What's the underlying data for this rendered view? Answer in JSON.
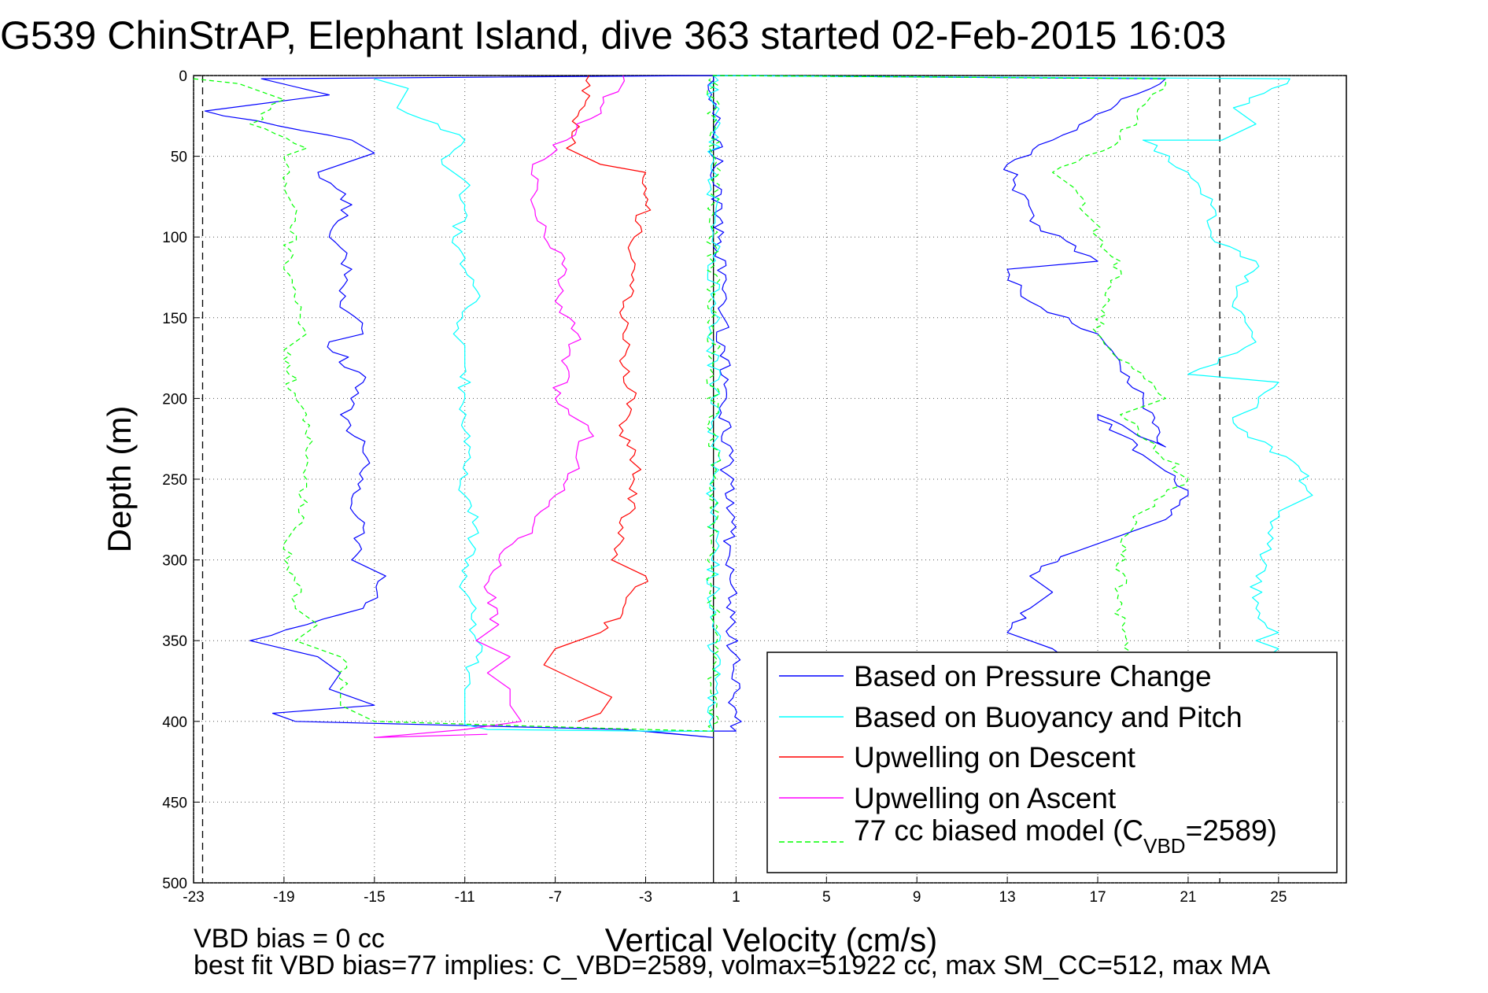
{
  "title": "G539 ChinStrAP, Elephant Island, dive 363 started 02-Feb-2015 16:03",
  "footer": {
    "line1": "VBD bias = 0 cc",
    "line2": "best fit VBD bias=77 implies: C_VBD=2589, volmax=51922 cc, max SM_CC=512, max MA"
  },
  "legend": {
    "model_prefix": "77 cc biased model (C",
    "model_sub": "VBD",
    "model_suffix": "=2589)"
  },
  "colors": {
    "pressure": "#0000ff",
    "buoyancy": "#00ffff",
    "descent": "#ff0000",
    "ascent": "#ff00ff",
    "model": "#00ff00",
    "grid": "#666666",
    "ref_lines": "#000000"
  },
  "chart_data": {
    "type": "line",
    "title": "G539 ChinStrAP, Elephant Island, dive 363 started 02-Feb-2015 16:03",
    "xlabel": "Vertical Velocity (cm/s)",
    "ylabel": "Depth (m)",
    "xlim": [
      -23,
      28
    ],
    "ylim": [
      0,
      500
    ],
    "y_reversed": true,
    "x_ticks": [
      "-23",
      "-19",
      "-15",
      "-11",
      "-7",
      "-3",
      "1",
      "5",
      "9",
      "13",
      "17",
      "21",
      "25"
    ],
    "y_ticks": [
      "0",
      "50",
      "100",
      "150",
      "200",
      "250",
      "300",
      "350",
      "400",
      "450",
      "500"
    ],
    "grid": true,
    "legend_position": "bottom-right",
    "reference_lines": [
      {
        "x": -22.6,
        "style": "dashed"
      },
      {
        "x": 0,
        "style": "solid"
      },
      {
        "x": 22.4,
        "style": "dashed"
      }
    ],
    "series": [
      {
        "name": "Based on Pressure Change",
        "color": "#0000ff",
        "style": "solid",
        "key": "pressure",
        "x": [
          0,
          -20,
          -17,
          -22.5,
          -16,
          -15,
          -17.5,
          -16,
          -17,
          -16,
          -16.5,
          -15.5,
          -17,
          -15.5,
          -16.5,
          -15.5,
          -15.5,
          -16,
          -15.5,
          -16,
          -14.5,
          -15.5,
          -20.5,
          -17.5,
          -16.5,
          -17,
          -15,
          -19.5,
          -18.5,
          -4,
          0,
          0,
          -3,
          0,
          1,
          0,
          20,
          15,
          13,
          14,
          17,
          13,
          14,
          17,
          18,
          19,
          20,
          17,
          19,
          20,
          21,
          20,
          18,
          16,
          14,
          15,
          14,
          13,
          15,
          15.5
        ],
        "y": [
          0,
          2,
          12,
          22,
          40,
          48,
          60,
          80,
          100,
          120,
          140,
          160,
          165,
          190,
          210,
          230,
          250,
          265,
          280,
          300,
          310,
          330,
          350,
          360,
          370,
          380,
          390,
          395,
          400,
          405,
          410,
          410,
          406,
          406,
          406,
          0,
          2,
          40,
          55,
          90,
          115,
          120,
          140,
          160,
          180,
          200,
          230,
          210,
          235,
          245,
          260,
          275,
          285,
          295,
          310,
          320,
          330,
          345,
          355,
          360
        ]
      },
      {
        "name": "Based on Buoyancy and Pitch",
        "color": "#00ffff",
        "style": "solid",
        "key": "buoyancy",
        "x": [
          -15,
          -13.5,
          -14,
          -11,
          -12,
          -11,
          -11,
          -11.5,
          -11,
          -10.5,
          -11.5,
          -11,
          -11,
          -11,
          -11,
          -11,
          -11,
          -10.5,
          -11,
          -11,
          -10.5,
          -10.5,
          -11,
          -11,
          -11,
          -11,
          -10,
          -3,
          0,
          0,
          25.5,
          23,
          24,
          22.5,
          19,
          21,
          22,
          22,
          24,
          23,
          24,
          21,
          25,
          23,
          26,
          26.5,
          25,
          24.5,
          24,
          24,
          25,
          24,
          25,
          24.5
        ],
        "y": [
          2,
          8,
          20,
          40,
          55,
          65,
          80,
          100,
          120,
          140,
          160,
          167,
          180,
          200,
          220,
          240,
          260,
          280,
          300,
          320,
          340,
          360,
          380,
          390,
          400,
          402,
          405,
          406,
          406,
          0,
          2,
          20,
          30,
          40,
          40,
          60,
          80,
          100,
          115,
          140,
          165,
          185,
          190,
          215,
          245,
          260,
          270,
          290,
          310,
          330,
          345,
          350,
          355,
          360
        ]
      },
      {
        "name": "Upwelling on Descent",
        "color": "#ff0000",
        "style": "solid",
        "key": "descent",
        "x": [
          -5.5,
          -6,
          -6.5,
          -5,
          -3,
          -3,
          -3.5,
          -3.5,
          -4,
          -4,
          -4,
          -3.5,
          -4,
          -3.5,
          -3.5,
          -3.5,
          -4,
          -4.5,
          -3,
          -4,
          -5,
          -7,
          -7.5,
          -6,
          -4.5,
          -5,
          -6
        ],
        "y": [
          0,
          25,
          45,
          55,
          60,
          80,
          100,
          120,
          140,
          160,
          180,
          200,
          220,
          235,
          250,
          265,
          280,
          300,
          310,
          330,
          345,
          355,
          365,
          375,
          385,
          395,
          400
        ]
      },
      {
        "name": "Upwelling on Ascent",
        "color": "#ff00ff",
        "style": "solid",
        "key": "ascent",
        "x": [
          -4,
          -5,
          -6.5,
          -8,
          -8,
          -7.5,
          -6.5,
          -7,
          -6,
          -6.5,
          -7,
          -5.5,
          -6,
          -7,
          -8,
          -9.5,
          -10,
          -9.5,
          -10.5,
          -9,
          -10,
          -9,
          -9,
          -8.5,
          -11,
          -15,
          -10
        ],
        "y": [
          0,
          20,
          40,
          55,
          80,
          100,
          120,
          140,
          160,
          180,
          200,
          220,
          240,
          260,
          280,
          300,
          320,
          340,
          350,
          360,
          370,
          380,
          390,
          400,
          405,
          410,
          408
        ]
      },
      {
        "name": "77 cc biased model (C_VBD=2589)",
        "color": "#00ff00",
        "style": "dashed",
        "key": "model",
        "x": [
          -23,
          -21,
          -19,
          -20.5,
          -18,
          -19,
          -19,
          -18.5,
          -19,
          -18.5,
          -18,
          -19,
          -18.5,
          -18,
          -18,
          -18,
          -18.5,
          -19,
          -18.5,
          -18.5,
          -17.5,
          -18.5,
          -16.5,
          -16.5,
          -16.5,
          -15,
          -3,
          0,
          0,
          0,
          20,
          18,
          15,
          16,
          17,
          18,
          17,
          20,
          18,
          21,
          19,
          18,
          18,
          18.5
        ],
        "y": [
          2,
          5,
          15,
          30,
          45,
          50,
          70,
          90,
          120,
          140,
          160,
          170,
          200,
          220,
          250,
          255,
          280,
          290,
          310,
          330,
          340,
          350,
          360,
          380,
          390,
          400,
          405,
          406,
          406,
          0,
          2,
          40,
          60,
          70,
          100,
          115,
          160,
          200,
          210,
          250,
          270,
          290,
          330,
          360
        ]
      }
    ]
  }
}
